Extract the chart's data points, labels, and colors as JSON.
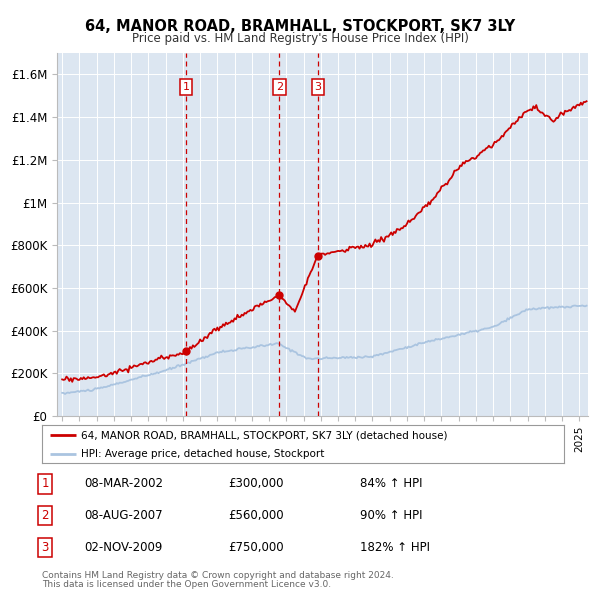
{
  "title": "64, MANOR ROAD, BRAMHALL, STOCKPORT, SK7 3LY",
  "subtitle": "Price paid vs. HM Land Registry's House Price Index (HPI)",
  "legend_line1": "64, MANOR ROAD, BRAMHALL, STOCKPORT, SK7 3LY (detached house)",
  "legend_line2": "HPI: Average price, detached house, Stockport",
  "footer1": "Contains HM Land Registry data © Crown copyright and database right 2024.",
  "footer2": "This data is licensed under the Open Government Licence v3.0.",
  "transactions": [
    {
      "num": 1,
      "date": "08-MAR-2002",
      "price": 300000,
      "pct": "84%",
      "x": 2002.18
    },
    {
      "num": 2,
      "date": "08-AUG-2007",
      "price": 560000,
      "pct": "90%",
      "x": 2007.6
    },
    {
      "num": 3,
      "date": "02-NOV-2009",
      "price": 750000,
      "pct": "182%",
      "x": 2009.84
    }
  ],
  "hpi_color": "#aac4e0",
  "price_color": "#cc0000",
  "background_plot": "#dce6f1",
  "background_fig": "#ffffff",
  "ylim": [
    0,
    1700000
  ],
  "yticks": [
    0,
    200000,
    400000,
    600000,
    800000,
    1000000,
    1200000,
    1400000,
    1600000
  ],
  "xlim": [
    1994.7,
    2025.5
  ]
}
